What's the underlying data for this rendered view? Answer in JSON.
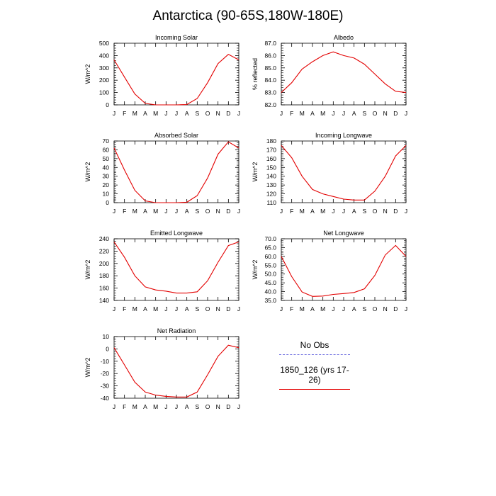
{
  "title": "Antarctica (90-65S,180W-180E)",
  "months": [
    "J",
    "F",
    "M",
    "A",
    "M",
    "J",
    "J",
    "A",
    "S",
    "O",
    "N",
    "D",
    "J"
  ],
  "legend": {
    "series": [
      {
        "label": "No Obs",
        "color": "#6f6fe0",
        "style": "dashed"
      },
      {
        "label": "1850_126 (yrs 17-26)",
        "color": "#e30000",
        "style": "solid"
      }
    ]
  },
  "chart_data": [
    {
      "type": "line",
      "title": "Incoming Solar",
      "ylabel": "W/m^2",
      "ylim": [
        0,
        500
      ],
      "yticks": [
        "0",
        "100",
        "200",
        "300",
        "400",
        "500"
      ],
      "series": [
        {
          "values": [
            365,
            225,
            88,
            12,
            0,
            0,
            0,
            3,
            52,
            180,
            335,
            410,
            365
          ]
        }
      ]
    },
    {
      "type": "line",
      "title": "Albedo",
      "ylabel": "% reflected",
      "ylim": [
        82,
        87
      ],
      "yticks": [
        "82.0",
        "83.0",
        "84.0",
        "85.0",
        "86.0",
        "87.0"
      ],
      "series": [
        {
          "values": [
            83.0,
            83.8,
            84.9,
            85.5,
            86.0,
            86.3,
            86.0,
            85.8,
            85.3,
            84.5,
            83.7,
            83.1,
            83.0
          ]
        }
      ]
    },
    {
      "type": "line",
      "title": "Absorbed Solar",
      "ylabel": "W/m^2",
      "ylim": [
        0,
        70
      ],
      "yticks": [
        "0",
        "10",
        "20",
        "30",
        "40",
        "50",
        "60",
        "70"
      ],
      "series": [
        {
          "values": [
            62,
            37,
            14,
            2,
            0,
            0,
            0,
            0.5,
            8,
            28,
            55,
            69,
            62
          ]
        }
      ]
    },
    {
      "type": "line",
      "title": "Incoming Longwave",
      "ylabel": "W/m^2",
      "ylim": [
        110,
        180
      ],
      "yticks": [
        "110",
        "120",
        "130",
        "140",
        "150",
        "160",
        "170",
        "180"
      ],
      "series": [
        {
          "values": [
            175,
            161,
            140,
            125,
            120,
            117,
            114,
            113,
            113,
            123,
            140,
            163,
            175
          ]
        }
      ]
    },
    {
      "type": "line",
      "title": "Emitted Longwave",
      "ylabel": "W/m^2",
      "ylim": [
        140,
        240
      ],
      "yticks": [
        "140",
        "160",
        "180",
        "200",
        "220",
        "240"
      ],
      "series": [
        {
          "values": [
            235,
            210,
            180,
            162,
            157,
            155,
            152,
            152,
            154,
            172,
            202,
            229,
            235
          ]
        }
      ]
    },
    {
      "type": "line",
      "title": "Net Longwave",
      "ylabel": "W/m^2",
      "ylim": [
        35,
        70
      ],
      "yticks": [
        "35.0",
        "40.0",
        "45.0",
        "50.0",
        "55.0",
        "60.0",
        "65.0",
        "70.0"
      ],
      "series": [
        {
          "values": [
            60,
            48.5,
            39.8,
            37.3,
            37.5,
            38.4,
            38.9,
            39.5,
            41.6,
            49.2,
            60.8,
            66.2,
            60
          ]
        }
      ]
    },
    {
      "type": "line",
      "title": "Net Radiation",
      "ylabel": "W/m^2",
      "ylim": [
        -40,
        10
      ],
      "yticks": [
        "-40",
        "-30",
        "-20",
        "-10",
        "0",
        "10"
      ],
      "series": [
        {
          "values": [
            1,
            -13,
            -27,
            -35,
            -37.5,
            -38.5,
            -39,
            -39,
            -35,
            -21,
            -6,
            3,
            1
          ]
        }
      ]
    }
  ]
}
